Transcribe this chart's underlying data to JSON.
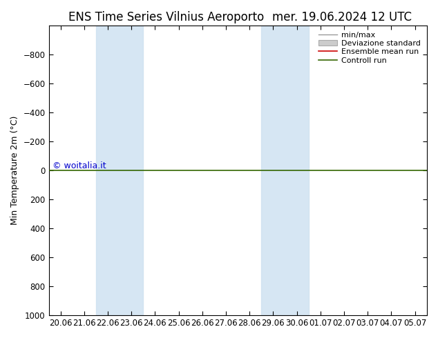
{
  "title_left": "ENS Time Series Vilnius Aeroporto",
  "title_right": "mer. 19.06.2024 12 UTC",
  "ylabel": "Min Temperature 2m (°C)",
  "ylim": [
    -1000,
    1000
  ],
  "yticks": [
    -800,
    -600,
    -400,
    -200,
    0,
    200,
    400,
    600,
    800,
    1000
  ],
  "xtick_labels": [
    "20.06",
    "21.06",
    "22.06",
    "23.06",
    "24.06",
    "25.06",
    "26.06",
    "27.06",
    "28.06",
    "29.06",
    "30.06",
    "01.07",
    "02.07",
    "03.07",
    "04.07",
    "05.07"
  ],
  "xtick_positions": [
    0,
    1,
    2,
    3,
    4,
    5,
    6,
    7,
    8,
    9,
    10,
    11,
    12,
    13,
    14,
    15
  ],
  "shaded_bands": [
    {
      "xstart": 2.0,
      "xend": 4.0,
      "color": "#cce0f0",
      "alpha": 0.8
    },
    {
      "xstart": 9.0,
      "xend": 11.0,
      "color": "#cce0f0",
      "alpha": 0.8
    }
  ],
  "control_run_y": 0,
  "ensemble_mean_y": 0,
  "control_run_color": "#336600",
  "ensemble_mean_color": "#cc0000",
  "minmax_color": "#999999",
  "std_fill_color": "#cccccc",
  "std_edge_color": "#aaaaaa",
  "background_color": "#ffffff",
  "plot_background": "#ffffff",
  "watermark": "© woitalia.it",
  "watermark_color": "#0000cc",
  "watermark_fontsize": 9,
  "legend_labels": [
    "min/max",
    "Deviazione standard",
    "Ensemble mean run",
    "Controll run"
  ],
  "title_fontsize": 12,
  "ylabel_fontsize": 9,
  "tick_fontsize": 8.5,
  "legend_fontsize": 8
}
